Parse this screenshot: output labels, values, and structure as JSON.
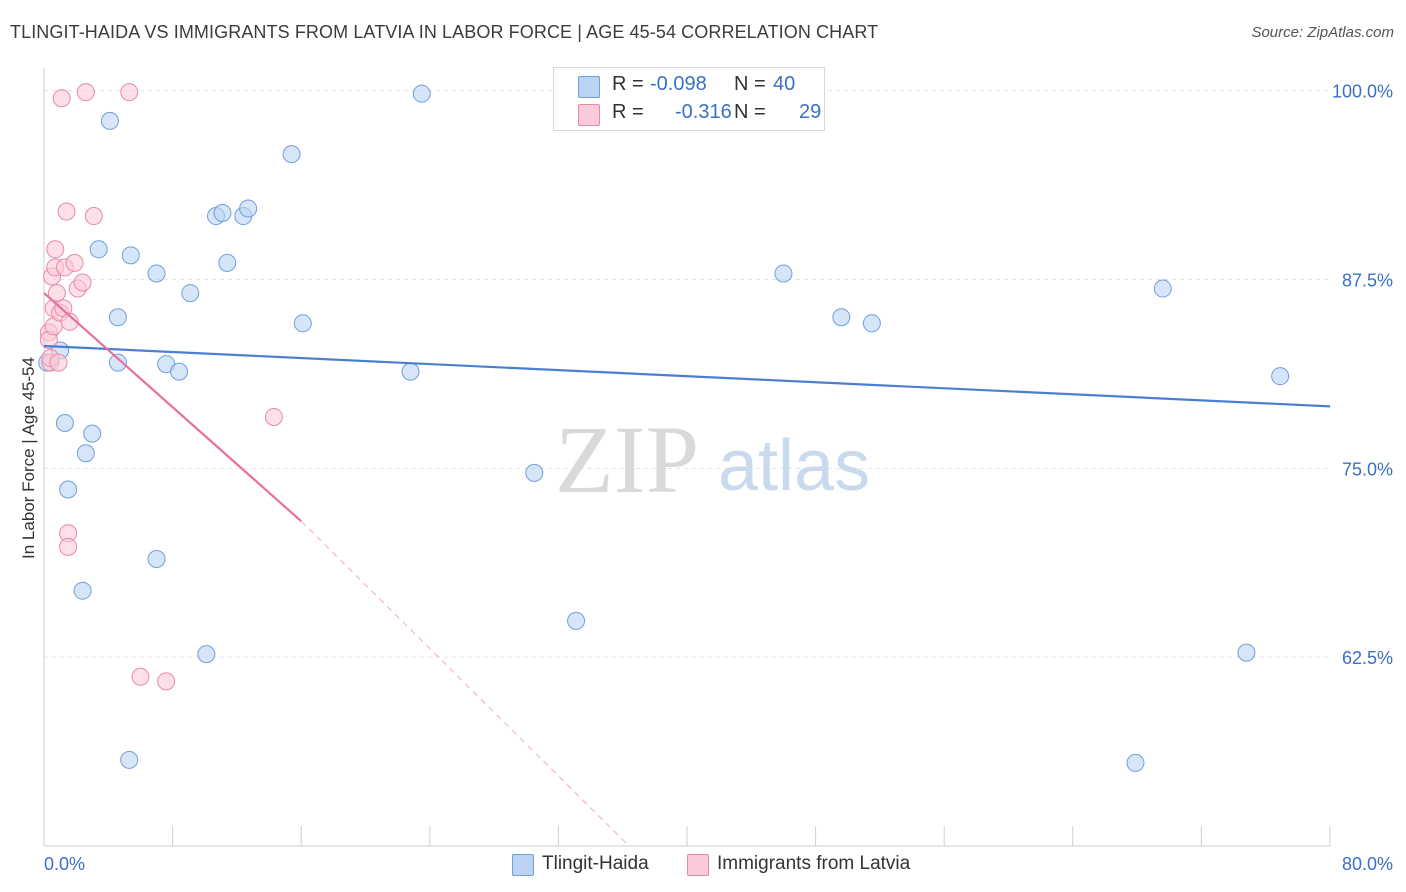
{
  "title": "TLINGIT-HAIDA VS IMMIGRANTS FROM LATVIA IN LABOR FORCE | AGE 45-54 CORRELATION CHART",
  "source": "Source: ZipAtlas.com",
  "watermark": {
    "zip": "ZIP",
    "atlas": "atlas"
  },
  "legend": {
    "r_label": "R =",
    "n_label": "N =",
    "entries": [
      {
        "name": "Tlingit-Haida",
        "r": "-0.098",
        "n": "40",
        "color": "#a9c8ef",
        "stroke": "#6f9fdc"
      },
      {
        "name": "Immigrants from Latvia",
        "r": "-0.316",
        "n": "29",
        "color": "#f7b6c9",
        "stroke": "#e88aa6"
      }
    ]
  },
  "chart_data": {
    "type": "scatter",
    "title": "TLINGIT-HAIDA VS IMMIGRANTS FROM LATVIA IN LABOR FORCE | AGE 45-54 CORRELATION CHART",
    "xlabel": "",
    "ylabel": "In Labor Force | Age 45-54",
    "xlim": [
      0,
      80
    ],
    "ylim": [
      50,
      101.5
    ],
    "x_tick_labels": [
      "0.0%",
      "80.0%"
    ],
    "y_ticks": [
      62.5,
      75.0,
      87.5,
      100.0
    ],
    "y_tick_labels": [
      "62.5%",
      "75.0%",
      "87.5%",
      "100.0%"
    ],
    "grid": true,
    "legend_position": "top-center",
    "series": [
      {
        "name": "Tlingit-Haida",
        "color": "#4a7fd0",
        "trend": {
          "x": [
            0,
            80
          ],
          "y": [
            83.1,
            79.1
          ]
        },
        "points": [
          [
            0.2,
            82.0
          ],
          [
            1.0,
            82.8
          ],
          [
            1.3,
            78.0
          ],
          [
            1.5,
            73.6
          ],
          [
            2.4,
            66.9
          ],
          [
            2.6,
            76.0
          ],
          [
            3.0,
            77.3
          ],
          [
            3.4,
            89.5
          ],
          [
            4.1,
            98.0
          ],
          [
            4.6,
            85.0
          ],
          [
            4.6,
            82.0
          ],
          [
            5.3,
            55.7
          ],
          [
            5.4,
            89.1
          ],
          [
            7.0,
            87.9
          ],
          [
            7.0,
            69.0
          ],
          [
            7.6,
            81.9
          ],
          [
            8.4,
            81.4
          ],
          [
            9.1,
            86.6
          ],
          [
            10.1,
            62.7
          ],
          [
            10.7,
            91.7
          ],
          [
            11.1,
            91.9
          ],
          [
            11.4,
            88.6
          ],
          [
            12.4,
            91.7
          ],
          [
            12.7,
            92.2
          ],
          [
            15.4,
            95.8
          ],
          [
            16.1,
            84.6
          ],
          [
            22.8,
            81.4
          ],
          [
            23.5,
            99.8
          ],
          [
            30.5,
            74.7
          ],
          [
            33.1,
            64.9
          ],
          [
            38.6,
            99.8
          ],
          [
            46.0,
            87.9
          ],
          [
            49.6,
            85.0
          ],
          [
            51.5,
            84.6
          ],
          [
            67.9,
            55.5
          ],
          [
            69.6,
            86.9
          ],
          [
            74.8,
            62.8
          ],
          [
            76.9,
            81.1
          ]
        ]
      },
      {
        "name": "Immigrants from Latvia",
        "color": "#e87098",
        "trend": {
          "x": [
            0,
            16
          ],
          "y": [
            86.6,
            71.5
          ]
        },
        "trend_dashed": {
          "x": [
            16,
            36.4
          ],
          "y": [
            71.5,
            50.0
          ]
        },
        "points": [
          [
            0.3,
            84.0
          ],
          [
            0.3,
            83.5
          ],
          [
            0.4,
            82.0
          ],
          [
            0.4,
            82.3
          ],
          [
            0.5,
            87.7
          ],
          [
            0.6,
            84.4
          ],
          [
            0.6,
            85.6
          ],
          [
            0.7,
            89.5
          ],
          [
            0.7,
            88.3
          ],
          [
            0.8,
            86.6
          ],
          [
            0.9,
            82.0
          ],
          [
            1.0,
            85.3
          ],
          [
            1.1,
            99.5
          ],
          [
            1.2,
            85.6
          ],
          [
            1.3,
            88.3
          ],
          [
            1.4,
            92.0
          ],
          [
            1.5,
            70.7
          ],
          [
            1.5,
            69.8
          ],
          [
            1.6,
            84.7
          ],
          [
            1.9,
            88.6
          ],
          [
            2.1,
            86.9
          ],
          [
            2.4,
            87.3
          ],
          [
            2.6,
            99.9
          ],
          [
            3.1,
            91.7
          ],
          [
            5.3,
            99.9
          ],
          [
            6.0,
            61.2
          ],
          [
            7.6,
            60.9
          ],
          [
            14.3,
            78.4
          ]
        ]
      }
    ]
  }
}
